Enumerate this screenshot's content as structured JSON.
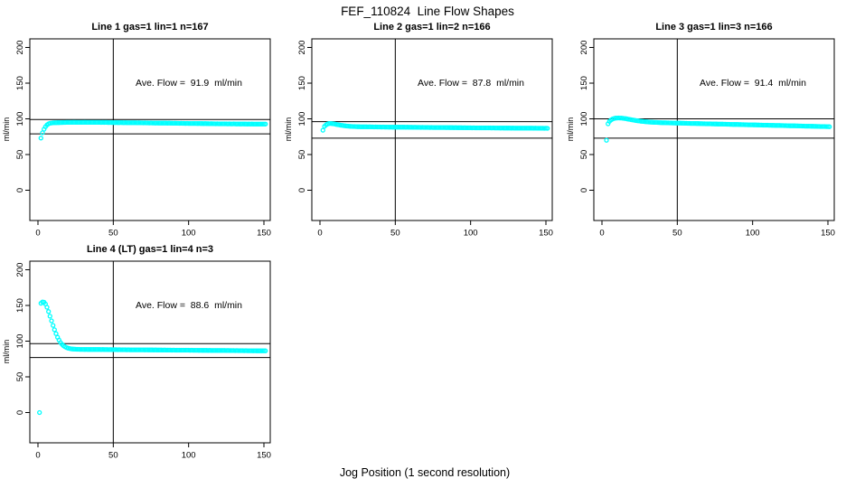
{
  "figure": {
    "title": "FEF_110824  Line Flow Shapes",
    "xlabel": "Jog Position (1 second resolution)"
  },
  "colors": {
    "marker": "#00FFFF",
    "axis": "#000000",
    "background": "#FFFFFF"
  },
  "chart_data": [
    {
      "type": "scatter",
      "title": "Line 1 gas=1 lin=1 n=167",
      "annotation": "Ave. Flow =  91.9  ml/min",
      "ave_flow_ml_min": 91.9,
      "n": 167,
      "ylabel": "ml/min",
      "xticks": [
        0,
        50,
        100,
        150
      ],
      "yticks": [
        0,
        50,
        100,
        150,
        200
      ],
      "xlim": [
        -5.4,
        154.2
      ],
      "ylim": [
        -42,
        212
      ],
      "grid": false,
      "marker": "open-circle",
      "vline": 50,
      "hlines": [
        99,
        79
      ],
      "x_start": 2,
      "x_step": 1,
      "y": [
        73,
        80.5,
        85.5,
        89,
        91.5,
        93,
        93.8,
        94.2,
        94.4,
        94.5,
        94.6,
        94.7,
        94.7,
        94.8,
        94.8,
        94.9,
        94.9,
        95,
        95,
        95.1,
        95,
        95.1,
        95.2,
        95.1,
        95,
        95.1,
        95.1,
        95,
        95.1,
        95.2,
        95.1,
        95,
        95.1,
        95,
        95.1,
        95.1,
        95,
        95,
        95.1,
        95,
        94.9,
        95,
        94.9,
        95,
        94.9,
        94.8,
        94.9,
        94.8,
        94.8,
        94.7,
        94.8,
        94.7,
        94.7,
        94.8,
        94.7,
        94.6,
        94.7,
        94.6,
        94.6,
        94.6,
        94.5,
        94.6,
        94.5,
        94.5,
        94.4,
        94.5,
        94.4,
        94.4,
        94.3,
        94.4,
        94.3,
        94.3,
        94.2,
        94.3,
        94.2,
        94.2,
        94.1,
        94.2,
        94.1,
        94.1,
        94,
        94.1,
        94,
        94,
        93.9,
        94,
        93.9,
        93.9,
        93.8,
        93.9,
        93.8,
        93.8,
        93.7,
        93.8,
        93.7,
        93.7,
        93.6,
        93.7,
        93.6,
        93.6,
        93.5,
        93.6,
        93.5,
        93.5,
        93.4,
        93.5,
        93.4,
        93.4,
        93.3,
        93.4,
        93.3,
        93.3,
        93.2,
        93.3,
        93.2,
        93.2,
        93.1,
        93.2,
        93.1,
        93.1,
        93,
        93.1,
        93,
        93,
        92.9,
        93,
        92.9,
        92.9,
        93,
        92.9,
        92.8,
        92.9,
        92.8,
        92.8,
        92.9,
        92.8,
        92.8,
        92.7,
        92.8,
        92.7,
        92.8,
        92.7,
        92.7,
        92.6,
        92.7,
        92.6,
        92.6,
        92.7,
        92.6,
        92.6
      ]
    },
    {
      "type": "scatter",
      "title": "Line 2 gas=1 lin=2 n=166",
      "annotation": "Ave. Flow =  87.8  ml/min",
      "ave_flow_ml_min": 87.8,
      "n": 166,
      "ylabel": "ml/min",
      "xticks": [
        0,
        50,
        100,
        150
      ],
      "yticks": [
        0,
        50,
        100,
        150,
        200
      ],
      "xlim": [
        -5.4,
        154.2
      ],
      "ylim": [
        -42,
        212
      ],
      "grid": false,
      "marker": "open-circle",
      "vline": 50,
      "hlines": [
        96,
        73
      ],
      "x_start": 2,
      "x_step": 1,
      "y": [
        84,
        89.5,
        91.5,
        92.8,
        93.4,
        93.5,
        93.3,
        93,
        92.6,
        92.2,
        91.8,
        91.4,
        91,
        90.7,
        90.4,
        90.1,
        89.9,
        89.7,
        89.5,
        89.4,
        89.3,
        89.2,
        89.1,
        89,
        89,
        88.9,
        88.9,
        88.8,
        88.8,
        88.8,
        88.7,
        88.8,
        88.7,
        88.7,
        88.6,
        88.7,
        88.6,
        88.6,
        88.6,
        88.5,
        88.6,
        88.5,
        88.5,
        88.5,
        88.4,
        88.5,
        88.4,
        88.4,
        88.4,
        88.4,
        88.3,
        88.4,
        88.3,
        88.3,
        88.3,
        88.2,
        88.3,
        88.2,
        88.2,
        88.2,
        88.1,
        88.2,
        88.1,
        88.1,
        88.1,
        88,
        88.1,
        88,
        88,
        88,
        88,
        87.9,
        88,
        87.9,
        87.9,
        87.9,
        87.8,
        87.9,
        87.8,
        87.8,
        87.8,
        87.8,
        87.7,
        87.8,
        87.7,
        87.7,
        87.7,
        87.6,
        87.7,
        87.6,
        87.6,
        87.6,
        87.6,
        87.5,
        87.6,
        87.5,
        87.5,
        87.5,
        87.5,
        87.4,
        87.5,
        87.4,
        87.4,
        87.4,
        87.4,
        87.3,
        87.4,
        87.3,
        87.3,
        87.3,
        87.3,
        87.3,
        87.2,
        87.3,
        87.2,
        87.2,
        87.2,
        87.2,
        87.1,
        87.2,
        87.1,
        87.1,
        87.1,
        87.1,
        87.1,
        87,
        87.1,
        87,
        87,
        87,
        87,
        87,
        86.9,
        87,
        86.9,
        86.9,
        86.9,
        86.9,
        86.9,
        86.9,
        86.8,
        86.9,
        86.8,
        86.8,
        86.8,
        86.8,
        86.8,
        86.7,
        86.8,
        86.7
      ]
    },
    {
      "type": "scatter",
      "title": "Line 3 gas=1 lin=3 n=166",
      "annotation": "Ave. Flow =  91.4  ml/min",
      "ave_flow_ml_min": 91.4,
      "n": 166,
      "ylabel": "ml/min",
      "xticks": [
        0,
        50,
        100,
        150
      ],
      "yticks": [
        0,
        50,
        100,
        150,
        200
      ],
      "xlim": [
        -5.4,
        154.2
      ],
      "ylim": [
        -42,
        212
      ],
      "grid": false,
      "marker": "open-circle",
      "vline": 50,
      "hlines": [
        100,
        73
      ],
      "x_start": 3,
      "x_step": 1,
      "y": [
        70,
        93,
        96.5,
        98.5,
        99.8,
        100.5,
        101,
        101.2,
        101.3,
        101.2,
        101.1,
        100.8,
        100.5,
        100.2,
        99.8,
        99.4,
        99,
        98.6,
        98.2,
        97.8,
        97.5,
        97.2,
        96.9,
        96.6,
        96.4,
        96.2,
        96,
        95.8,
        95.6,
        95.5,
        95.3,
        95.2,
        95.1,
        95,
        94.9,
        94.8,
        94.7,
        94.6,
        94.5,
        94.5,
        94.4,
        94.4,
        94.3,
        94.3,
        94.2,
        94.2,
        94.1,
        94.1,
        94,
        94,
        93.9,
        93.9,
        93.8,
        93.8,
        93.7,
        93.7,
        93.6,
        93.6,
        93.5,
        93.5,
        93.4,
        93.4,
        93.3,
        93.3,
        93.2,
        93.2,
        93.1,
        93.1,
        93,
        93,
        92.9,
        92.9,
        92.8,
        92.8,
        92.7,
        92.7,
        92.6,
        92.6,
        92.5,
        92.5,
        92.4,
        92.4,
        92.3,
        92.3,
        92.2,
        92.2,
        92.1,
        92.1,
        92,
        92,
        91.9,
        91.9,
        91.8,
        91.8,
        91.7,
        91.7,
        91.6,
        91.6,
        91.5,
        91.5,
        91.4,
        91.4,
        91.3,
        91.3,
        91.2,
        91.2,
        91.1,
        91.1,
        91,
        91,
        90.9,
        90.9,
        90.8,
        90.8,
        90.7,
        90.7,
        90.6,
        90.6,
        90.5,
        90.5,
        90.4,
        90.4,
        90.3,
        90.3,
        90.2,
        90.2,
        90.1,
        90.1,
        90,
        90,
        89.9,
        89.9,
        89.8,
        89.8,
        89.7,
        89.7,
        89.6,
        89.6,
        89.5,
        89.5,
        89.4,
        89.4,
        89.3,
        89.3,
        89.2,
        89.2,
        89.1,
        89.1,
        89
      ]
    },
    {
      "type": "scatter",
      "title": "Line 4 (LT) gas=1 lin=4 n=3",
      "annotation": "Ave. Flow =  88.6  ml/min",
      "ave_flow_ml_min": 88.6,
      "n": 3,
      "ylabel": "ml/min",
      "xticks": [
        0,
        50,
        100,
        150
      ],
      "yticks": [
        0,
        50,
        100,
        150,
        200
      ],
      "xlim": [
        -5.4,
        154.2
      ],
      "ylim": [
        -42,
        212
      ],
      "grid": false,
      "marker": "open-circle",
      "vline": 50,
      "hlines": [
        96.5,
        77
      ],
      "x_start": 1,
      "x_step": 1,
      "y": [
        0,
        153,
        155,
        154.5,
        152,
        147.5,
        141.5,
        135,
        128.5,
        122,
        116,
        110.5,
        105.5,
        101.5,
        98,
        95.5,
        93.5,
        92,
        91,
        90.2,
        89.7,
        89.3,
        89,
        88.8,
        88.7,
        88.6,
        88.6,
        88.5,
        88.5,
        88.5,
        88.4,
        88.5,
        88.4,
        88.4,
        88.4,
        88.3,
        88.4,
        88.3,
        88.3,
        88.3,
        88.3,
        88.2,
        88.3,
        88.2,
        88.2,
        88.2,
        88.1,
        88.2,
        88.1,
        88.1,
        88.1,
        88.1,
        88,
        88.1,
        88,
        88,
        88,
        88,
        87.9,
        88,
        87.9,
        87.9,
        87.9,
        87.9,
        87.8,
        87.9,
        87.8,
        87.8,
        87.8,
        87.8,
        87.7,
        87.8,
        87.7,
        87.7,
        87.7,
        87.7,
        87.6,
        87.7,
        87.6,
        87.6,
        87.6,
        87.6,
        87.5,
        87.6,
        87.5,
        87.5,
        87.5,
        87.5,
        87.4,
        87.5,
        87.4,
        87.4,
        87.4,
        87.4,
        87.3,
        87.4,
        87.3,
        87.3,
        87.3,
        87.3,
        87.2,
        87.3,
        87.2,
        87.2,
        87.2,
        87.2,
        87.1,
        87.2,
        87.1,
        87.1,
        87.1,
        87.1,
        87,
        87.1,
        87,
        87,
        87,
        87,
        86.9,
        87,
        86.9,
        86.9,
        86.9,
        86.9,
        86.8,
        86.9,
        86.8,
        86.8,
        86.8,
        86.8,
        86.7,
        86.8,
        86.7,
        86.7,
        86.7,
        86.7,
        86.6,
        86.7,
        86.6,
        86.6,
        86.6,
        86.6,
        86.5,
        86.6,
        86.5,
        86.5,
        86.5,
        86.5,
        86.4,
        86.5,
        86.4
      ]
    }
  ]
}
